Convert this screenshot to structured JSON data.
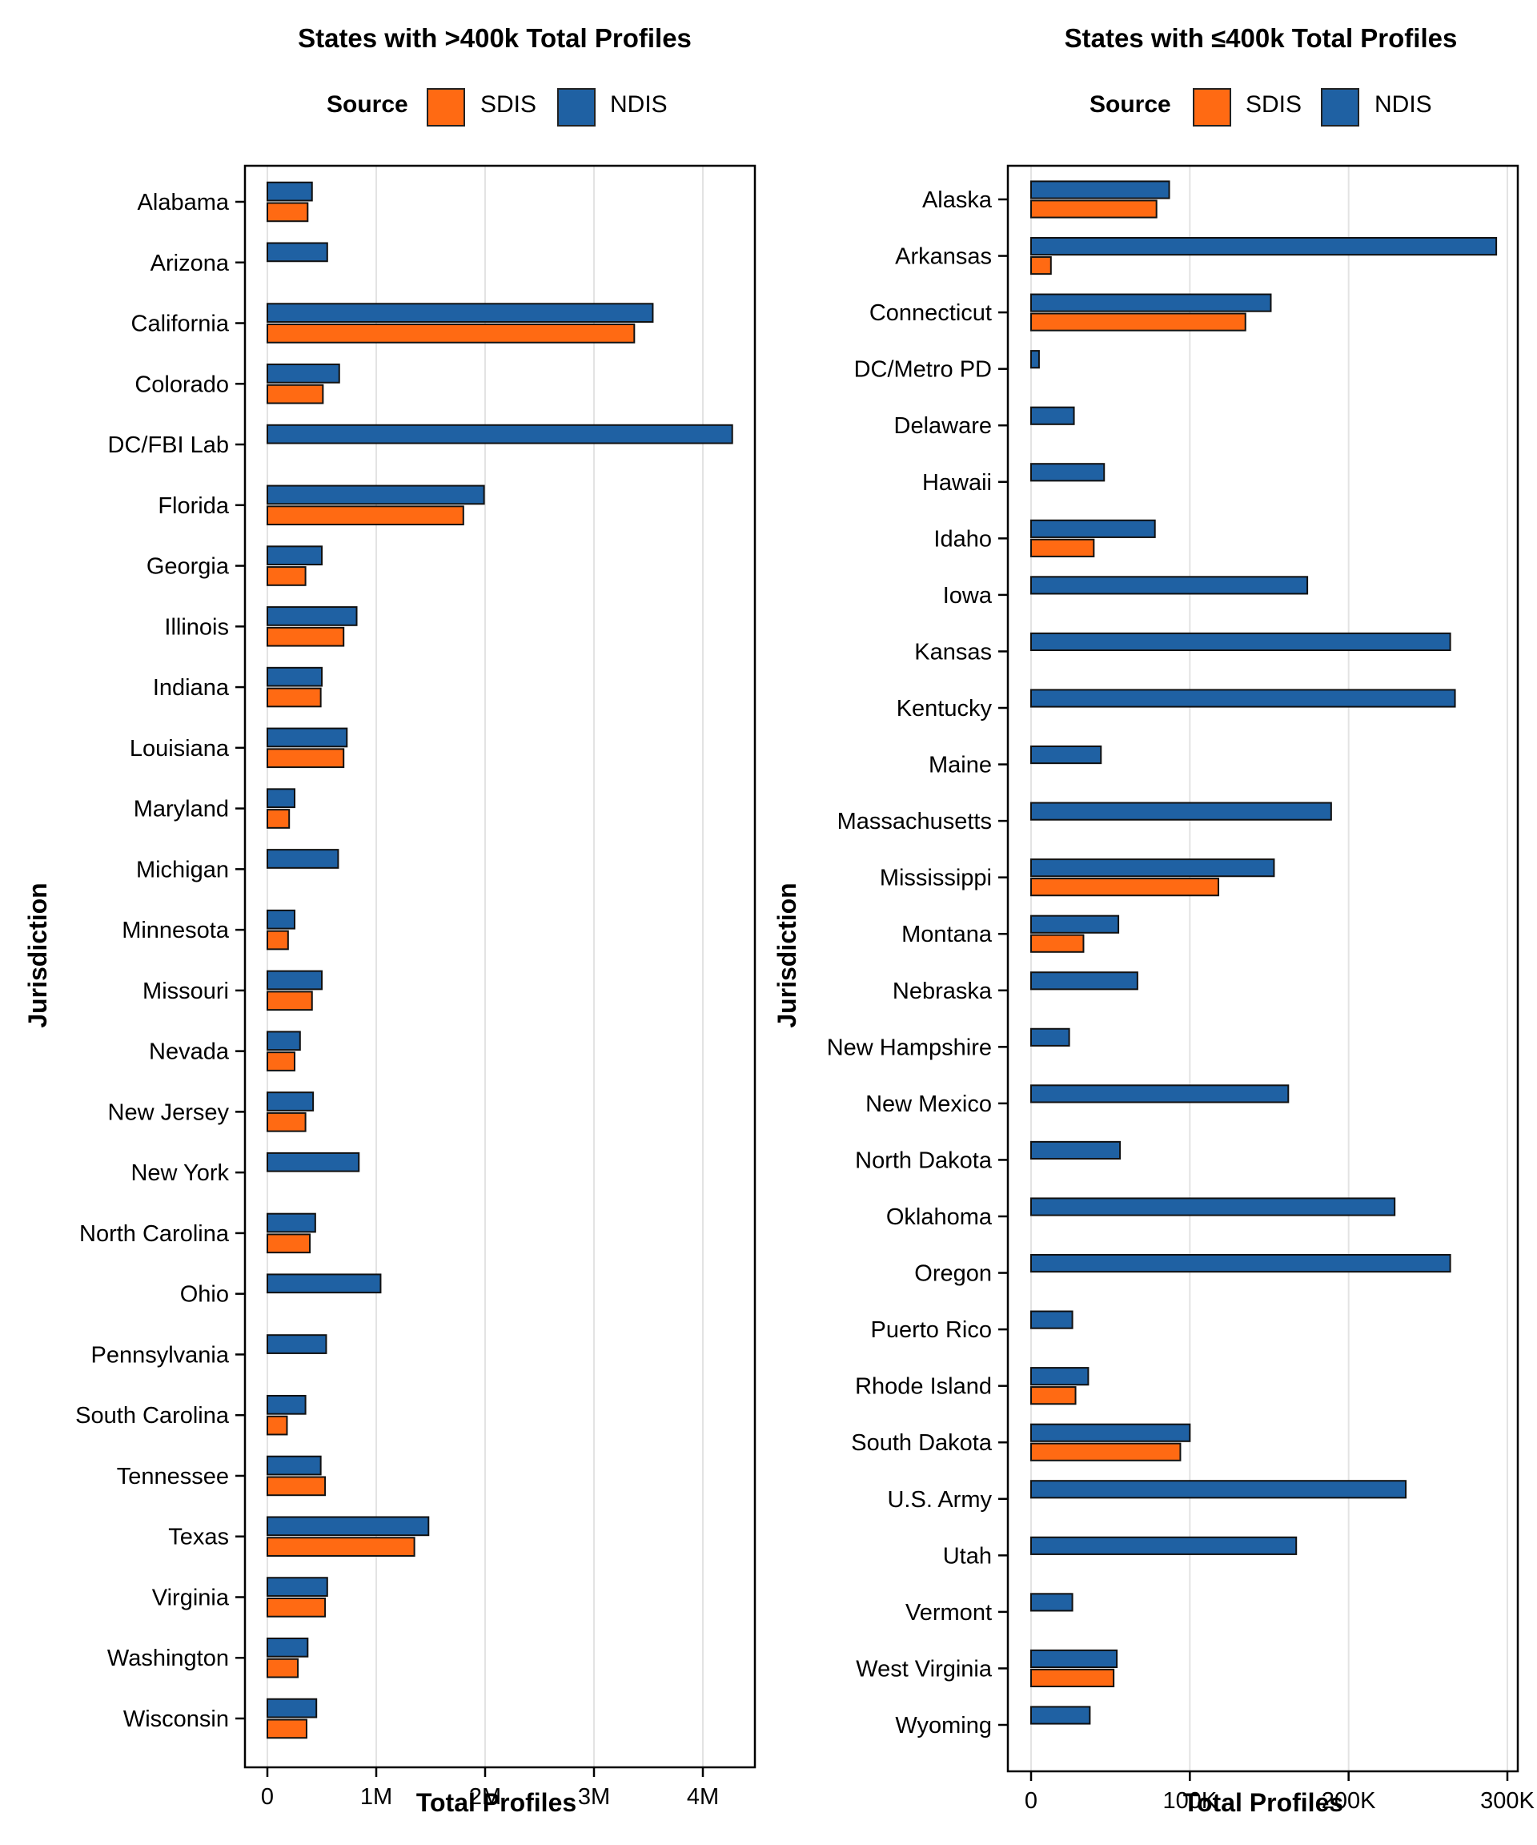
{
  "chart_data": [
    {
      "type": "bar",
      "orientation": "horizontal",
      "title": "States with >400k Total Profiles",
      "xlabel": "Total Profiles",
      "ylabel": "Jurisdiction",
      "xlim": [
        0,
        4500000
      ],
      "xticks": [
        0,
        1000000,
        2000000,
        3000000,
        4000000
      ],
      "xtick_labels": [
        "0",
        "1M",
        "2M",
        "3M",
        "4M"
      ],
      "grid": true,
      "legend": {
        "title": "Source",
        "position": "top",
        "entries": [
          {
            "name": "SDIS",
            "color": "#FF6A13"
          },
          {
            "name": "NDIS",
            "color": "#1F61A3"
          }
        ]
      },
      "categories": [
        "Alabama",
        "Arizona",
        "California",
        "Colorado",
        "DC/FBI Lab",
        "Florida",
        "Georgia",
        "Illinois",
        "Indiana",
        "Louisiana",
        "Maryland",
        "Michigan",
        "Minnesota",
        "Missouri",
        "Nevada",
        "New Jersey",
        "New York",
        "North Carolina",
        "Ohio",
        "Pennsylvania",
        "South Carolina",
        "Tennessee",
        "Texas",
        "Virginia",
        "Washington",
        "Wisconsin"
      ],
      "series": [
        {
          "name": "NDIS",
          "color": "#1F61A3",
          "values": [
            410000,
            550000,
            3540000,
            660000,
            4270000,
            1990000,
            500000,
            820000,
            500000,
            730000,
            250000,
            650000,
            250000,
            500000,
            300000,
            420000,
            840000,
            440000,
            1040000,
            540000,
            350000,
            490000,
            1480000,
            550000,
            370000,
            450000
          ]
        },
        {
          "name": "SDIS",
          "color": "#FF6A13",
          "values": [
            370000,
            null,
            3370000,
            510000,
            null,
            1800000,
            350000,
            700000,
            490000,
            700000,
            200000,
            null,
            190000,
            410000,
            250000,
            350000,
            null,
            390000,
            null,
            null,
            180000,
            530000,
            1350000,
            530000,
            280000,
            360000
          ]
        }
      ]
    },
    {
      "type": "bar",
      "orientation": "horizontal",
      "title": "States with ≤400k Total Profiles",
      "xlabel": "Total Profiles",
      "ylabel": "Jurisdiction",
      "xlim": [
        0,
        300000
      ],
      "xticks": [
        0,
        100000,
        200000,
        300000
      ],
      "xtick_labels": [
        "0",
        "100K",
        "200K",
        "300K"
      ],
      "grid": true,
      "legend": {
        "title": "Source",
        "position": "top",
        "entries": [
          {
            "name": "SDIS",
            "color": "#FF6A13"
          },
          {
            "name": "NDIS",
            "color": "#1F61A3"
          }
        ]
      },
      "categories": [
        "Alaska",
        "Arkansas",
        "Connecticut",
        "DC/Metro PD",
        "Delaware",
        "Hawaii",
        "Idaho",
        "Iowa",
        "Kansas",
        "Kentucky",
        "Maine",
        "Massachusetts",
        "Mississippi",
        "Montana",
        "Nebraska",
        "New Hampshire",
        "New Mexico",
        "North Dakota",
        "Oklahoma",
        "Oregon",
        "Puerto Rico",
        "Rhode Island",
        "South Dakota",
        "U.S. Army",
        "Utah",
        "Vermont",
        "West Virginia",
        "Wyoming"
      ],
      "series": [
        {
          "name": "NDIS",
          "color": "#1F61A3",
          "values": [
            87000,
            293000,
            151000,
            5000,
            27000,
            46000,
            78000,
            174000,
            264000,
            267000,
            44000,
            189000,
            153000,
            55000,
            67000,
            24000,
            162000,
            56000,
            229000,
            264000,
            26000,
            36000,
            100000,
            236000,
            167000,
            26000,
            54000,
            37000
          ]
        },
        {
          "name": "SDIS",
          "color": "#FF6A13",
          "values": [
            79000,
            12500,
            135000,
            null,
            null,
            null,
            39500,
            null,
            null,
            null,
            null,
            null,
            118000,
            33000,
            null,
            null,
            null,
            null,
            null,
            null,
            null,
            28000,
            94000,
            null,
            null,
            null,
            52000,
            null
          ]
        }
      ]
    }
  ]
}
